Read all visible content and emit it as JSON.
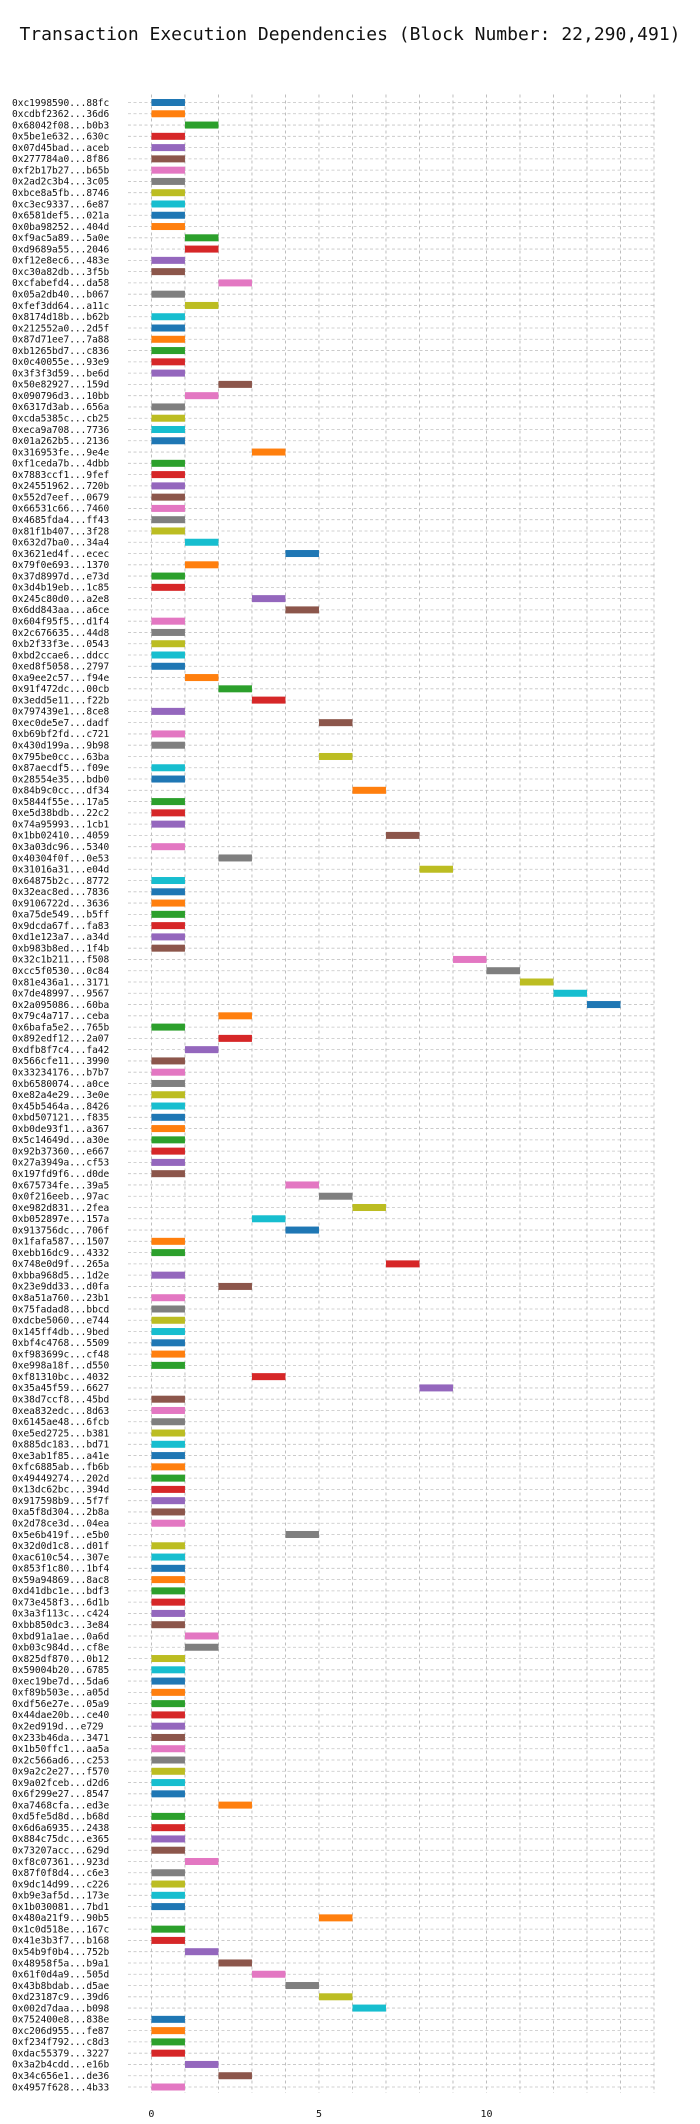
{
  "chart_data": {
    "type": "gantt",
    "title": "Transaction Execution Dependencies (Block Number: 22,290,491)",
    "xlabel": "",
    "ylabel": "",
    "xlim": [
      -0.7,
      15.0
    ],
    "xticks": [
      0,
      5,
      10
    ],
    "grid": true,
    "colors": [
      "#1f77b4",
      "#ff7f0e",
      "#2ca02c",
      "#d62728",
      "#9467bd",
      "#8c564b",
      "#e377c2",
      "#7f7f7f",
      "#bcbd22",
      "#17becf"
    ],
    "transactions": [
      {
        "label": "0xc1998590...88fc",
        "start": 0
      },
      {
        "label": "0xcdbf2362...36d6",
        "start": 0
      },
      {
        "label": "0x68042f08...b0b3",
        "start": 1
      },
      {
        "label": "0x5be1e632...630c",
        "start": 0
      },
      {
        "label": "0x07d45bad...aceb",
        "start": 0
      },
      {
        "label": "0x277784a0...8f86",
        "start": 0
      },
      {
        "label": "0xf2b17b27...b65b",
        "start": 0
      },
      {
        "label": "0x2ad2c3b4...3c05",
        "start": 0
      },
      {
        "label": "0xbce8a5fb...8746",
        "start": 0
      },
      {
        "label": "0xc3ec9337...6e87",
        "start": 0
      },
      {
        "label": "0x6581def5...021a",
        "start": 0
      },
      {
        "label": "0x0ba98252...404d",
        "start": 0
      },
      {
        "label": "0xf9ac5a89...5a0e",
        "start": 1
      },
      {
        "label": "0xd9689a55...2046",
        "start": 1
      },
      {
        "label": "0xf12e8ec6...483e",
        "start": 0
      },
      {
        "label": "0xc30a82db...3f5b",
        "start": 0
      },
      {
        "label": "0xcfabefd4...da58",
        "start": 2
      },
      {
        "label": "0x05a2db40...b067",
        "start": 0
      },
      {
        "label": "0xfef3dd64...a11c",
        "start": 1
      },
      {
        "label": "0x8174d18b...b62b",
        "start": 0
      },
      {
        "label": "0x212552a0...2d5f",
        "start": 0
      },
      {
        "label": "0x87d71ee7...7a88",
        "start": 0
      },
      {
        "label": "0xb1265bd7...c836",
        "start": 0
      },
      {
        "label": "0x0c40055e...93e9",
        "start": 0
      },
      {
        "label": "0x3f3f3d59...be6d",
        "start": 0
      },
      {
        "label": "0x50e82927...159d",
        "start": 2
      },
      {
        "label": "0x090796d3...10bb",
        "start": 1
      },
      {
        "label": "0x6317d3ab...656a",
        "start": 0
      },
      {
        "label": "0xcda5385c...cb25",
        "start": 0
      },
      {
        "label": "0xeca9a708...7736",
        "start": 0
      },
      {
        "label": "0x01a262b5...2136",
        "start": 0
      },
      {
        "label": "0x316953fe...9e4e",
        "start": 3
      },
      {
        "label": "0xf1ceda7b...4dbb",
        "start": 0
      },
      {
        "label": "0x7883ccf1...9fef",
        "start": 0
      },
      {
        "label": "0x24551962...720b",
        "start": 0
      },
      {
        "label": "0x552d7eef...0679",
        "start": 0
      },
      {
        "label": "0x66531c66...7460",
        "start": 0
      },
      {
        "label": "0x4685fda4...ff43",
        "start": 0
      },
      {
        "label": "0x81f1b407...3f28",
        "start": 0
      },
      {
        "label": "0x632d7ba0...34a4",
        "start": 1
      },
      {
        "label": "0x3621ed4f...ecec",
        "start": 4
      },
      {
        "label": "0x79f0e693...1370",
        "start": 1
      },
      {
        "label": "0x37d8997d...e73d",
        "start": 0
      },
      {
        "label": "0x3d4b19eb...1c85",
        "start": 0
      },
      {
        "label": "0x245c80d0...a2e8",
        "start": 3
      },
      {
        "label": "0x6dd843aa...a6ce",
        "start": 4
      },
      {
        "label": "0x604f95f5...d1f4",
        "start": 0
      },
      {
        "label": "0x2c676635...44d8",
        "start": 0
      },
      {
        "label": "0xb2f33f3e...0543",
        "start": 0
      },
      {
        "label": "0xbd2ccae6...ddcc",
        "start": 0
      },
      {
        "label": "0xed8f5058...2797",
        "start": 0
      },
      {
        "label": "0xa9ee2c57...f94e",
        "start": 1
      },
      {
        "label": "0x91f472dc...00cb",
        "start": 2
      },
      {
        "label": "0x3edd5e11...f22b",
        "start": 3
      },
      {
        "label": "0x797439e1...8ce8",
        "start": 0
      },
      {
        "label": "0xec0de5e7...dadf",
        "start": 5
      },
      {
        "label": "0xb69bf2fd...c721",
        "start": 0
      },
      {
        "label": "0x430d199a...9b98",
        "start": 0
      },
      {
        "label": "0x795be0cc...63ba",
        "start": 5
      },
      {
        "label": "0x87aecdf5...f09e",
        "start": 0
      },
      {
        "label": "0x28554e35...bdb0",
        "start": 0
      },
      {
        "label": "0x84b9c0cc...df34",
        "start": 6
      },
      {
        "label": "0x5844f55e...17a5",
        "start": 0
      },
      {
        "label": "0xe5d38bdb...22c2",
        "start": 0
      },
      {
        "label": "0x74a95993...1cb1",
        "start": 0
      },
      {
        "label": "0x1bb02410...4059",
        "start": 7
      },
      {
        "label": "0x3a03dc96...5340",
        "start": 0
      },
      {
        "label": "0x40304f0f...0e53",
        "start": 2
      },
      {
        "label": "0x31016a31...e04d",
        "start": 8
      },
      {
        "label": "0x64875b2c...8772",
        "start": 0
      },
      {
        "label": "0x32eac8ed...7836",
        "start": 0
      },
      {
        "label": "0x9106722d...3636",
        "start": 0
      },
      {
        "label": "0xa75de549...b5ff",
        "start": 0
      },
      {
        "label": "0x9dcda67f...fa83",
        "start": 0
      },
      {
        "label": "0xd1e123a7...a34d",
        "start": 0
      },
      {
        "label": "0xb983b8ed...1f4b",
        "start": 0
      },
      {
        "label": "0x32c1b211...f508",
        "start": 9
      },
      {
        "label": "0xcc5f0530...0c84",
        "start": 10
      },
      {
        "label": "0x81e436a1...3171",
        "start": 11
      },
      {
        "label": "0x7de48997...9567",
        "start": 12
      },
      {
        "label": "0x2a095086...60ba",
        "start": 13
      },
      {
        "label": "0x79c4a717...ceba",
        "start": 2
      },
      {
        "label": "0x6bafa5e2...765b",
        "start": 0
      },
      {
        "label": "0x892edf12...2a07",
        "start": 2
      },
      {
        "label": "0xdfb8f7c4...fa42",
        "start": 1
      },
      {
        "label": "0x566cfe11...3990",
        "start": 0
      },
      {
        "label": "0x33234176...b7b7",
        "start": 0
      },
      {
        "label": "0xb6580074...a0ce",
        "start": 0
      },
      {
        "label": "0xe82a4e29...3e0e",
        "start": 0
      },
      {
        "label": "0x45b5464a...8426",
        "start": 0
      },
      {
        "label": "0xbd507121...f835",
        "start": 0
      },
      {
        "label": "0xb0de93f1...a367",
        "start": 0
      },
      {
        "label": "0x5c14649d...a30e",
        "start": 0
      },
      {
        "label": "0x92b37360...e667",
        "start": 0
      },
      {
        "label": "0x27a3949a...cf53",
        "start": 0
      },
      {
        "label": "0x197fd9f6...d0de",
        "start": 0
      },
      {
        "label": "0x675734fe...39a5",
        "start": 4
      },
      {
        "label": "0x0f216eeb...97ac",
        "start": 5
      },
      {
        "label": "0xe982d831...2fea",
        "start": 6
      },
      {
        "label": "0xb052897e...157a",
        "start": 3
      },
      {
        "label": "0x913756dc...706f",
        "start": 4
      },
      {
        "label": "0x1fafa587...1507",
        "start": 0
      },
      {
        "label": "0xebb16dc9...4332",
        "start": 0
      },
      {
        "label": "0x748e0d9f...265a",
        "start": 7
      },
      {
        "label": "0xbba968d5...1d2e",
        "start": 0
      },
      {
        "label": "0x23e9dd33...d0fa",
        "start": 2
      },
      {
        "label": "0x8a51a760...23b1",
        "start": 0
      },
      {
        "label": "0x75fadad8...bbcd",
        "start": 0
      },
      {
        "label": "0xdcbe5060...e744",
        "start": 0
      },
      {
        "label": "0x145ff4db...9bed",
        "start": 0
      },
      {
        "label": "0xbf4c4768...5509",
        "start": 0
      },
      {
        "label": "0xf983699c...cf48",
        "start": 0
      },
      {
        "label": "0xe998a18f...d550",
        "start": 0
      },
      {
        "label": "0xf81310bc...4032",
        "start": 3
      },
      {
        "label": "0x35a45f59...6627",
        "start": 8
      },
      {
        "label": "0x38d7ccf8...45bd",
        "start": 0
      },
      {
        "label": "0xea832edc...8d63",
        "start": 0
      },
      {
        "label": "0x6145ae48...6fcb",
        "start": 0
      },
      {
        "label": "0xe5ed2725...b381",
        "start": 0
      },
      {
        "label": "0x885dc183...bd71",
        "start": 0
      },
      {
        "label": "0xe3ab1f85...a41e",
        "start": 0
      },
      {
        "label": "0xfc6885ab...fb6b",
        "start": 0
      },
      {
        "label": "0x49449274...202d",
        "start": 0
      },
      {
        "label": "0x13dc62bc...394d",
        "start": 0
      },
      {
        "label": "0x917598b9...5f7f",
        "start": 0
      },
      {
        "label": "0xa5f8d304...2b8a",
        "start": 0
      },
      {
        "label": "0x2d78ce3d...04ea",
        "start": 0
      },
      {
        "label": "0x5e6b419f...e5b0",
        "start": 4
      },
      {
        "label": "0x32d0d1c8...d01f",
        "start": 0
      },
      {
        "label": "0xac610c54...307e",
        "start": 0
      },
      {
        "label": "0x853f1c80...1bf4",
        "start": 0
      },
      {
        "label": "0x59a94869...8ac8",
        "start": 0
      },
      {
        "label": "0xd41dbc1e...bdf3",
        "start": 0
      },
      {
        "label": "0x73e458f3...6d1b",
        "start": 0
      },
      {
        "label": "0x3a3f113c...c424",
        "start": 0
      },
      {
        "label": "0xbb850dc3...3e84",
        "start": 0
      },
      {
        "label": "0xbd91a1ae...0a6d",
        "start": 1
      },
      {
        "label": "0xb03c984d...cf8e",
        "start": 1
      },
      {
        "label": "0x825df870...0b12",
        "start": 0
      },
      {
        "label": "0x59004b20...6785",
        "start": 0
      },
      {
        "label": "0xec19be7d...5da6",
        "start": 0
      },
      {
        "label": "0xf89b503e...a05d",
        "start": 0
      },
      {
        "label": "0xdf56e27e...05a9",
        "start": 0
      },
      {
        "label": "0x44dae20b...ce40",
        "start": 0
      },
      {
        "label": "0x2ed919d...e729",
        "start": 0
      },
      {
        "label": "0x233b46da...3471",
        "start": 0
      },
      {
        "label": "0x1b50ffc1...aa5a",
        "start": 0
      },
      {
        "label": "0x2c566ad6...c253",
        "start": 0
      },
      {
        "label": "0x9a2c2e27...f570",
        "start": 0
      },
      {
        "label": "0x9a02fceb...d2d6",
        "start": 0
      },
      {
        "label": "0x6f299e27...8547",
        "start": 0
      },
      {
        "label": "0xa7468cfa...ed3e",
        "start": 2
      },
      {
        "label": "0xd5fe5d8d...b68d",
        "start": 0
      },
      {
        "label": "0x6d6a6935...2438",
        "start": 0
      },
      {
        "label": "0x884c75dc...e365",
        "start": 0
      },
      {
        "label": "0x73207acc...629d",
        "start": 0
      },
      {
        "label": "0xf8c07361...923d",
        "start": 1
      },
      {
        "label": "0x87f0f8d4...c6e3",
        "start": 0
      },
      {
        "label": "0x9dc14d99...c226",
        "start": 0
      },
      {
        "label": "0xb9e3af5d...173e",
        "start": 0
      },
      {
        "label": "0x1b030081...7bd1",
        "start": 0
      },
      {
        "label": "0x480a21f9...90b5",
        "start": 5
      },
      {
        "label": "0x1c0d518e...167c",
        "start": 0
      },
      {
        "label": "0x41e3b3f7...b168",
        "start": 0
      },
      {
        "label": "0x54b9f0b4...752b",
        "start": 1
      },
      {
        "label": "0x48958f5a...b9a1",
        "start": 2
      },
      {
        "label": "0x61f0d4a9...505d",
        "start": 3
      },
      {
        "label": "0x43b8bdab...d5ae",
        "start": 4
      },
      {
        "label": "0xd23187c9...39d6",
        "start": 5
      },
      {
        "label": "0x002d7daa...b098",
        "start": 6
      },
      {
        "label": "0x752400e8...838e",
        "start": 0
      },
      {
        "label": "0xc206d955...fe87",
        "start": 0
      },
      {
        "label": "0xf234f792...c8d3",
        "start": 0
      },
      {
        "label": "0xdac55379...3227",
        "start": 0
      },
      {
        "label": "0x3a2b4cdd...e16b",
        "start": 1
      },
      {
        "label": "0x34c656e1...de36",
        "start": 2
      },
      {
        "label": "0x4957f628...4b33",
        "start": 0
      }
    ]
  }
}
